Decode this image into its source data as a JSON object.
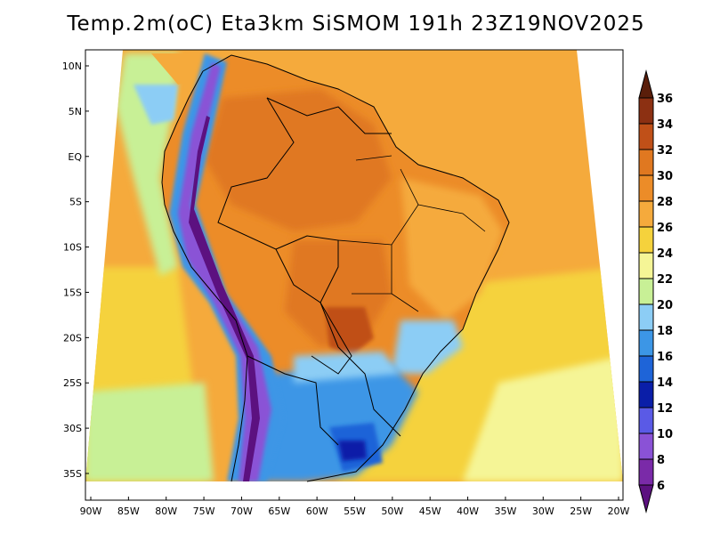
{
  "title": "Temp.2m(oC) Eta3km SiSMOM 191h 23Z19NOV2025",
  "lat_ticks": [
    {
      "value": 10,
      "label": "10N"
    },
    {
      "value": 5,
      "label": "5N"
    },
    {
      "value": 0,
      "label": "EQ"
    },
    {
      "value": -5,
      "label": "5S"
    },
    {
      "value": -10,
      "label": "10S"
    },
    {
      "value": -15,
      "label": "15S"
    },
    {
      "value": -20,
      "label": "20S"
    },
    {
      "value": -25,
      "label": "25S"
    },
    {
      "value": -30,
      "label": "30S"
    },
    {
      "value": -35,
      "label": "35S"
    }
  ],
  "lon_ticks": [
    {
      "value": -90,
      "label": "90W"
    },
    {
      "value": -85,
      "label": "85W"
    },
    {
      "value": -80,
      "label": "80W"
    },
    {
      "value": -75,
      "label": "75W"
    },
    {
      "value": -70,
      "label": "70W"
    },
    {
      "value": -65,
      "label": "65W"
    },
    {
      "value": -60,
      "label": "60W"
    },
    {
      "value": -55,
      "label": "55W"
    },
    {
      "value": -50,
      "label": "50W"
    },
    {
      "value": -45,
      "label": "45W"
    },
    {
      "value": -40,
      "label": "40W"
    },
    {
      "value": -35,
      "label": "35W"
    },
    {
      "value": -30,
      "label": "30W"
    },
    {
      "value": -25,
      "label": "25W"
    },
    {
      "value": -20,
      "label": "20W"
    }
  ],
  "colorbar": {
    "labels": [
      "6",
      "8",
      "10",
      "12",
      "14",
      "16",
      "18",
      "20",
      "22",
      "24",
      "26",
      "28",
      "30",
      "32",
      "34",
      "36"
    ],
    "colors": [
      "#5c1180",
      "#7a2aa8",
      "#8a52d6",
      "#5a5ae6",
      "#0a1ea8",
      "#1e64d8",
      "#3c96e6",
      "#8ccdf5",
      "#c8f096",
      "#f5f596",
      "#f5d23c",
      "#f5aa3c",
      "#ec8c28",
      "#e07820",
      "#c05018",
      "#8c3012",
      "#5a1e0a"
    ]
  },
  "colors": {
    "ocean_north": "#f5aa3c",
    "ocean_south": "#f5d23c",
    "pacific_coast": "#8ccdf5",
    "land_hot": "#ec8c28",
    "andes": "#7a2aa8",
    "south_cool": "#3c96e6"
  }
}
